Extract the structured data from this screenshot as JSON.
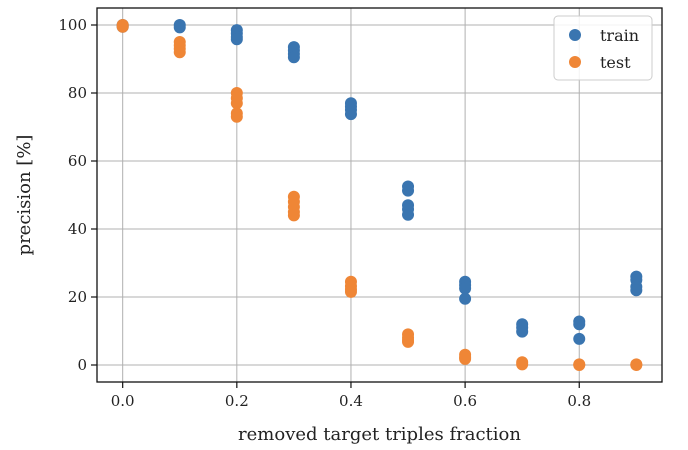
{
  "chart_data": {
    "type": "scatter",
    "xlabel": "removed target triples fraction",
    "ylabel": "precision [%]",
    "xlim": [
      -0.045,
      0.945
    ],
    "ylim": [
      -5,
      105
    ],
    "xticks": [
      0.0,
      0.2,
      0.4,
      0.6,
      0.8
    ],
    "xtick_labels": [
      "0.0",
      "0.2",
      "0.4",
      "0.6",
      "0.8"
    ],
    "yticks": [
      0,
      20,
      40,
      60,
      80,
      100
    ],
    "ytick_labels": [
      "0",
      "20",
      "40",
      "60",
      "80",
      "100"
    ],
    "grid": true,
    "legend_position": "top-right",
    "series": [
      {
        "name": "train",
        "color": "#3a75b0",
        "points": [
          [
            0.0,
            100
          ],
          [
            0.0,
            99.5
          ],
          [
            0.1,
            100
          ],
          [
            0.1,
            99.3
          ],
          [
            0.2,
            98.5
          ],
          [
            0.2,
            97.5
          ],
          [
            0.2,
            96.5
          ],
          [
            0.2,
            95.8
          ],
          [
            0.3,
            93.5
          ],
          [
            0.3,
            92.5
          ],
          [
            0.3,
            91.5
          ],
          [
            0.3,
            90.5
          ],
          [
            0.4,
            77
          ],
          [
            0.4,
            76
          ],
          [
            0.4,
            75
          ],
          [
            0.4,
            73.8
          ],
          [
            0.5,
            52.5
          ],
          [
            0.5,
            51.3
          ],
          [
            0.5,
            47
          ],
          [
            0.5,
            45.8
          ],
          [
            0.5,
            44.2
          ],
          [
            0.6,
            24.5
          ],
          [
            0.6,
            23.5
          ],
          [
            0.6,
            22.5
          ],
          [
            0.6,
            19.5
          ],
          [
            0.7,
            12
          ],
          [
            0.7,
            11
          ],
          [
            0.7,
            9.8
          ],
          [
            0.8,
            12.8
          ],
          [
            0.8,
            12
          ],
          [
            0.8,
            7.7
          ],
          [
            0.9,
            26
          ],
          [
            0.9,
            25
          ],
          [
            0.9,
            23
          ],
          [
            0.9,
            22
          ]
        ]
      },
      {
        "name": "test",
        "color": "#ef8636",
        "points": [
          [
            0.0,
            100
          ],
          [
            0.0,
            99.5
          ],
          [
            0.1,
            95
          ],
          [
            0.1,
            94
          ],
          [
            0.1,
            93
          ],
          [
            0.1,
            92
          ],
          [
            0.2,
            80
          ],
          [
            0.2,
            78.5
          ],
          [
            0.2,
            77
          ],
          [
            0.2,
            74
          ],
          [
            0.2,
            73
          ],
          [
            0.3,
            49.5
          ],
          [
            0.3,
            48
          ],
          [
            0.3,
            46.5
          ],
          [
            0.3,
            45
          ],
          [
            0.3,
            44
          ],
          [
            0.4,
            24.5
          ],
          [
            0.4,
            23.2
          ],
          [
            0.4,
            22.2
          ],
          [
            0.4,
            21.5
          ],
          [
            0.5,
            9
          ],
          [
            0.5,
            8
          ],
          [
            0.5,
            7.2
          ],
          [
            0.5,
            6.8
          ],
          [
            0.6,
            3
          ],
          [
            0.6,
            2.2
          ],
          [
            0.6,
            1.8
          ],
          [
            0.7,
            0.8
          ],
          [
            0.7,
            0.2
          ],
          [
            0.8,
            0.2
          ],
          [
            0.8,
            0
          ],
          [
            0.9,
            0.2
          ],
          [
            0.9,
            0
          ]
        ]
      }
    ]
  }
}
